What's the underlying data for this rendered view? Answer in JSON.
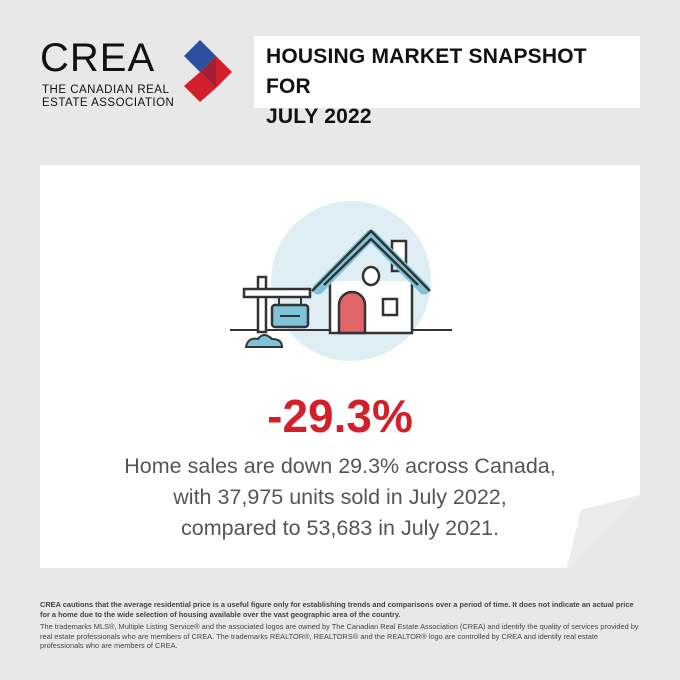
{
  "logo": {
    "wordmark": "CREA",
    "subtitle_line1": "THE CANADIAN REAL",
    "subtitle_line2": "ESTATE ASSOCIATION",
    "colors": {
      "blue": "#2d4fa0",
      "red": "#d21f2a"
    }
  },
  "header": {
    "title_line1": "HOUSING MARKET SNAPSHOT FOR",
    "title_line2": "JULY 2022"
  },
  "card": {
    "stat": "-29.3%",
    "description_line1": "Home sales are down 29.3% across Canada,",
    "description_line2": "with 37,975 units sold in July 2022,",
    "description_line3": "compared to 53,683 in July 2021.",
    "illustration": "house-with-sign-icon",
    "accent_color": "#d21f2a"
  },
  "footer": {
    "disclaimer_bold": "CREA cautions that the average residential price is a useful figure only for establishing trends and comparisons over a period of time. It does not indicate an actual price for a home due to the wide selection of housing available over the vast geographic area of the country.",
    "trademark": "The trademarks MLS®, Multiple Listing Service® and the associated logos are owned by The Canadian Real Estate Association (CREA) and identify the quality of services provided by real estate professionals who are members of CREA. The trademarks REALTOR®, REALTORS® and the REALTOR® logo are controlled by CREA and identify real estate professionals who are members of CREA."
  }
}
